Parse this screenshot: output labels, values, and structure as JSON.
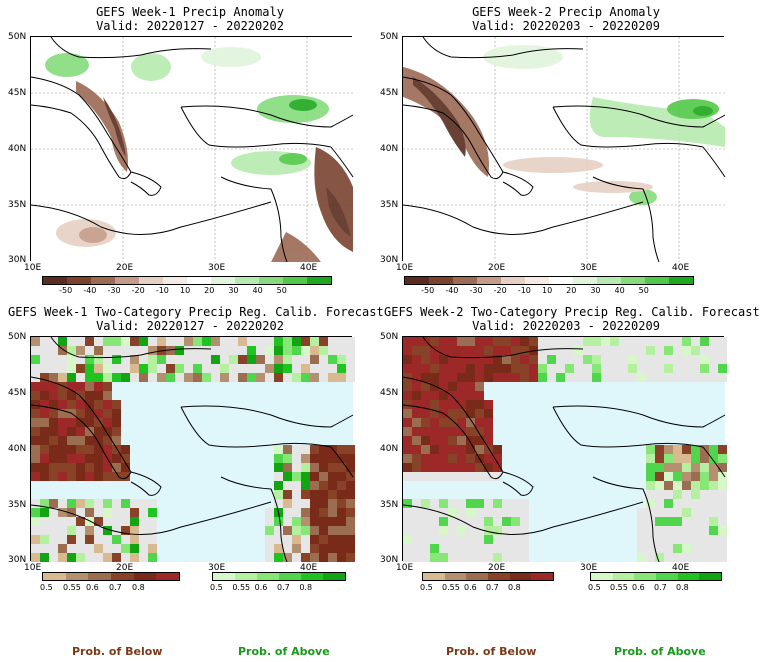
{
  "panels": [
    {
      "title1": "GEFS Week-1 Precip Anomaly",
      "title2": "Valid: 20220127 - 20220202"
    },
    {
      "title1": "GEFS Week-2 Precip Anomaly",
      "title2": "Valid: 20220203 - 20220209"
    },
    {
      "title1": "GEFS Week-1 Two-Category Precip Reg. Calib. Forecast",
      "title2": "Valid: 20220127 - 20220202"
    },
    {
      "title1": "GEFS Week-2 Two-Category Precip Reg. Calib. Forecast",
      "title2": "Valid: 20220203 - 20220209"
    }
  ],
  "axes": {
    "lat_labels": [
      "50N",
      "45N",
      "40N",
      "35N",
      "30N"
    ],
    "lon_labels": [
      "10E",
      "20E",
      "30E",
      "40E"
    ]
  },
  "anomaly_colorbar": {
    "labels": [
      "-50",
      "-40",
      "-30",
      "-20",
      "-10",
      "10",
      "20",
      "30",
      "40",
      "50"
    ],
    "colors": [
      "#5a2d20",
      "#7a4330",
      "#9c6a55",
      "#c49b88",
      "#e6d0c4",
      "#f4ebe6",
      "#ffffff",
      "#e0f5dc",
      "#b7eab0",
      "#86dc7c",
      "#52c848",
      "#1ea81e"
    ]
  },
  "prob_below_colorbar": {
    "labels": [
      "0.5",
      "0.55",
      "0.6",
      "0.7",
      "0.8"
    ],
    "colors": [
      "#d8b990",
      "#b59070",
      "#9b6e52",
      "#874228",
      "#7a2a18",
      "#9c2828"
    ]
  },
  "prob_above_colorbar": {
    "labels": [
      "0.5",
      "0.55",
      "0.6",
      "0.7",
      "0.8"
    ],
    "colors": [
      "#d6f7c8",
      "#b4f0a0",
      "#86e676",
      "#4fd64c",
      "#20c420",
      "#12a412"
    ]
  },
  "legend": {
    "below_label": "Prob. of Below",
    "above_label": "Prob. of Above",
    "below_color": "#7a3a1a",
    "above_color": "#1a9a1a"
  }
}
